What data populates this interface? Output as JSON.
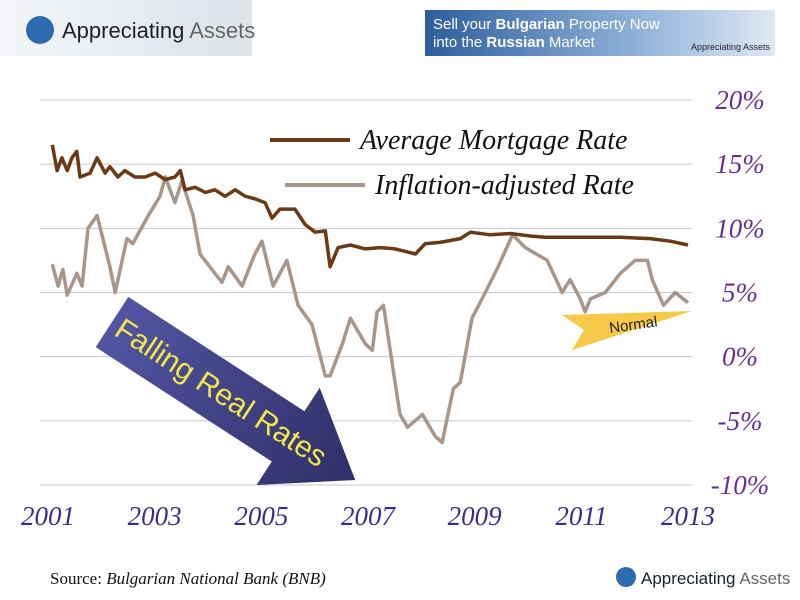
{
  "header": {
    "logo": {
      "word1": "Appreciating",
      "word2": "Assets"
    },
    "banner": {
      "line1": [
        "Sell your",
        "Bulgarian",
        "Property Now"
      ],
      "line2": [
        "into the",
        "Russian",
        "Market"
      ],
      "logo": "Appreciating Assets"
    }
  },
  "chart_data": {
    "type": "line",
    "legend": "upper right",
    "grid": true,
    "xlim": [
      2001,
      2013
    ],
    "xticks": [
      2001,
      2003,
      2005,
      2007,
      2009,
      2011,
      2013
    ],
    "ylim": [
      -10,
      20
    ],
    "yticks": [
      {
        "value": -10,
        "label": "-10%"
      },
      {
        "value": -5,
        "label": "-5%"
      },
      {
        "value": 0,
        "label": "0%"
      },
      {
        "value": 5,
        "label": "5%"
      },
      {
        "value": 10,
        "label": "10%"
      },
      {
        "value": 15,
        "label": "15%"
      },
      {
        "value": 20,
        "label": "20%"
      }
    ],
    "series": [
      {
        "name": "Average Mortgage Rate",
        "color": "#6b3a14",
        "x": [
          2001.08,
          2001.17,
          2001.26,
          2001.36,
          2001.45,
          2001.54,
          2001.6,
          2001.79,
          2001.92,
          2002.07,
          2002.16,
          2002.31,
          2002.44,
          2002.63,
          2002.82,
          2003.01,
          2003.2,
          2003.38,
          2003.48,
          2003.57,
          2003.76,
          2003.95,
          2004.13,
          2004.32,
          2004.51,
          2004.7,
          2004.88,
          2005.07,
          2005.2,
          2005.35,
          2005.63,
          2005.82,
          2006.01,
          2006.2,
          2006.29,
          2006.44,
          2006.67,
          2006.95,
          2007.23,
          2007.51,
          2007.7,
          2007.89,
          2008.07,
          2008.35,
          2008.73,
          2008.92,
          2009.29,
          2009.67,
          2010.04,
          2010.32,
          2010.79,
          2011.36,
          2011.73,
          2012.29,
          2012.67,
          2013.0
        ],
        "values": [
          16.5,
          14.5,
          15.5,
          14.5,
          15.5,
          16,
          14,
          14.3,
          15.5,
          14.3,
          14.8,
          14,
          14.5,
          14,
          14,
          14.3,
          13.8,
          14,
          14.5,
          13,
          13.2,
          12.8,
          13,
          12.5,
          13,
          12.5,
          12.3,
          12,
          10.8,
          11.5,
          11.5,
          10.3,
          9.7,
          9.8,
          7,
          8.5,
          8.7,
          8.4,
          8.5,
          8.4,
          8.2,
          8,
          8.8,
          8.9,
          9.2,
          9.7,
          9.5,
          9.6,
          9.4,
          9.3,
          9.3,
          9.3,
          9.3,
          9.2,
          9,
          8.7
        ]
      },
      {
        "name": "Inflation-adjusted Rate",
        "color": "#a8968a",
        "x": [
          2001.08,
          2001.19,
          2001.28,
          2001.36,
          2001.54,
          2001.64,
          2001.75,
          2001.92,
          2002.16,
          2002.26,
          2002.48,
          2002.59,
          2002.88,
          2003.1,
          2003.2,
          2003.38,
          2003.51,
          2003.72,
          2003.85,
          2004.13,
          2004.26,
          2004.38,
          2004.64,
          2004.88,
          2005.01,
          2005.22,
          2005.48,
          2005.69,
          2005.95,
          2006.2,
          2006.29,
          2006.52,
          2006.67,
          2006.95,
          2007.08,
          2007.17,
          2007.29,
          2007.47,
          2007.6,
          2007.74,
          2008.02,
          2008.26,
          2008.39,
          2008.6,
          2008.73,
          2008.95,
          2009.2,
          2009.44,
          2009.71,
          2009.95,
          2010.36,
          2010.64,
          2010.79,
          2010.98,
          2011.07,
          2011.17,
          2011.45,
          2011.73,
          2012.01,
          2012.24,
          2012.33,
          2012.54,
          2012.76,
          2013.0
        ],
        "values": [
          7.2,
          5.5,
          6.8,
          4.8,
          6.5,
          5.5,
          10,
          11,
          7,
          5,
          9.2,
          8.8,
          11,
          12.5,
          14,
          12,
          13.7,
          11,
          8,
          6.5,
          5.8,
          7,
          5.5,
          8,
          9,
          5.5,
          7.5,
          4,
          2.5,
          -1.5,
          -1.5,
          1,
          3,
          1,
          0.5,
          3.5,
          4,
          -1,
          -4.5,
          -5.5,
          -4.5,
          -6.2,
          -6.7,
          -2.5,
          -2,
          3,
          5,
          7,
          9.5,
          8.5,
          7.5,
          5,
          6,
          4.5,
          3.5,
          4.5,
          5,
          6.5,
          7.5,
          7.5,
          6,
          4,
          5,
          4.2
        ]
      }
    ],
    "annotations": {
      "falling": "Falling Real Rates",
      "normal": "Normal",
      "source_label": "Source:",
      "source": "Bulgarian National Bank (BNB)"
    },
    "footer_logo": {
      "word1": "Appreciating",
      "word2": "Assets"
    }
  }
}
